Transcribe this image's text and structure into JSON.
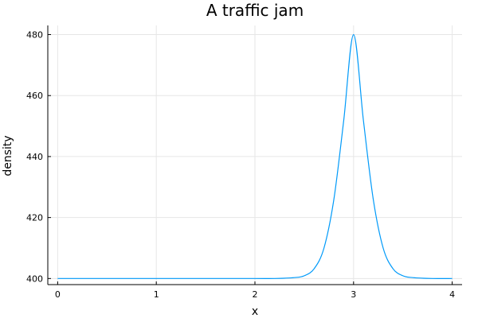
{
  "chart_data": {
    "type": "line",
    "title": "A traffic jam",
    "xlabel": "x",
    "ylabel": "density",
    "xlim": [
      -0.1,
      4.1
    ],
    "ylim": [
      398,
      483
    ],
    "xticks": [
      0,
      1,
      2,
      3,
      4
    ],
    "yticks": [
      400,
      420,
      440,
      460,
      480
    ],
    "grid": true,
    "legend": "none",
    "series": [
      {
        "color": "#009af9",
        "x": [
          0,
          0.5,
          1.0,
          1.5,
          2.0,
          2.2,
          2.4,
          2.5,
          2.6,
          2.7,
          2.8,
          2.9,
          3.0,
          3.1,
          3.2,
          3.3,
          3.4,
          3.5,
          3.6,
          3.8,
          4.0
        ],
        "y": [
          400,
          400,
          400,
          400,
          400,
          400,
          400.3,
          400.9,
          403.2,
          410.0,
          425.9,
          451.8,
          480,
          451.8,
          425.9,
          410.0,
          403.2,
          400.9,
          400.3,
          400,
          400
        ]
      }
    ]
  }
}
